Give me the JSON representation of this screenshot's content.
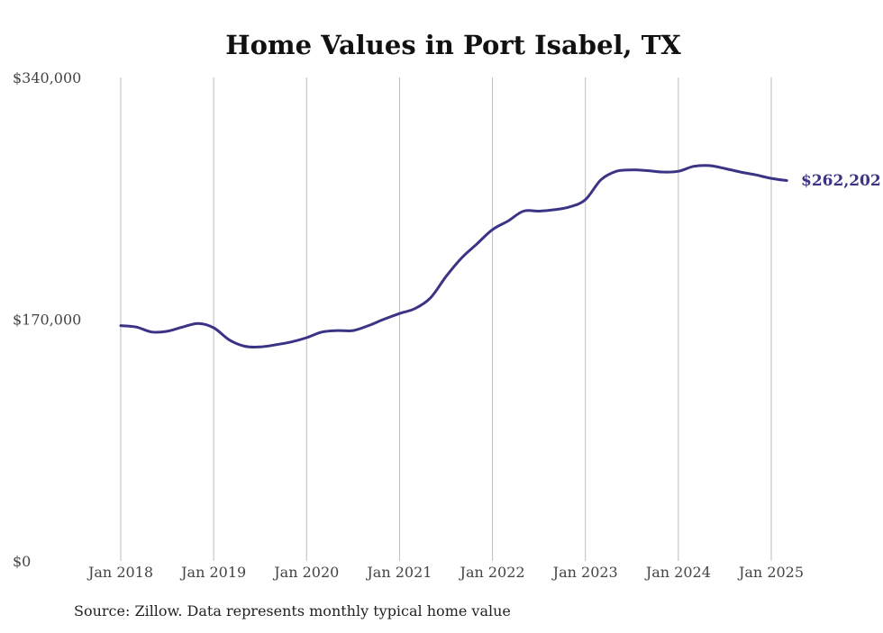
{
  "chart_data": {
    "type": "line",
    "title": "Home Values in Port Isabel, TX",
    "source": "Source: Zillow. Data represents monthly typical home value",
    "ylim": [
      0,
      340000
    ],
    "yticks": [
      0,
      170000,
      340000
    ],
    "ytick_labels": [
      "$0",
      "$170,000",
      "$340,000"
    ],
    "xticks": [
      "2018-01",
      "2019-01",
      "2020-01",
      "2021-01",
      "2022-01",
      "2023-01",
      "2024-01",
      "2025-01"
    ],
    "xtick_labels": [
      "Jan 2018",
      "Jan 2019",
      "Jan 2020",
      "Jan 2021",
      "Jan 2022",
      "Jan 2023",
      "Jan 2024",
      "Jan 2025"
    ],
    "grid": "vertical",
    "line_color": "#3b3486",
    "end_label": "$262,202",
    "series": [
      {
        "x": [
          "2018-01",
          "2018-03",
          "2018-05",
          "2018-07",
          "2018-09",
          "2018-11",
          "2019-01",
          "2019-03",
          "2019-05",
          "2019-07",
          "2019-09",
          "2019-11",
          "2020-01",
          "2020-03",
          "2020-05",
          "2020-07",
          "2020-09",
          "2020-11",
          "2021-01",
          "2021-03",
          "2021-05",
          "2021-07",
          "2021-09",
          "2021-11",
          "2022-01",
          "2022-03",
          "2022-05",
          "2022-07",
          "2022-09",
          "2022-11",
          "2023-01",
          "2023-03",
          "2023-05",
          "2023-07",
          "2023-09",
          "2023-11",
          "2024-01",
          "2024-03",
          "2024-05",
          "2024-07",
          "2024-09",
          "2024-11",
          "2025-01",
          "2025-03"
        ],
        "values": [
          165500,
          164500,
          161000,
          161500,
          164500,
          167000,
          164000,
          155500,
          151000,
          150500,
          152000,
          154000,
          157000,
          161000,
          162000,
          162000,
          165500,
          170000,
          174000,
          177500,
          185000,
          200000,
          213000,
          223000,
          233000,
          239000,
          246000,
          246000,
          247000,
          249000,
          254000,
          268000,
          274000,
          275000,
          274500,
          273500,
          274000,
          277500,
          278000,
          276000,
          273500,
          271500,
          269000,
          267500
        ]
      }
    ]
  }
}
